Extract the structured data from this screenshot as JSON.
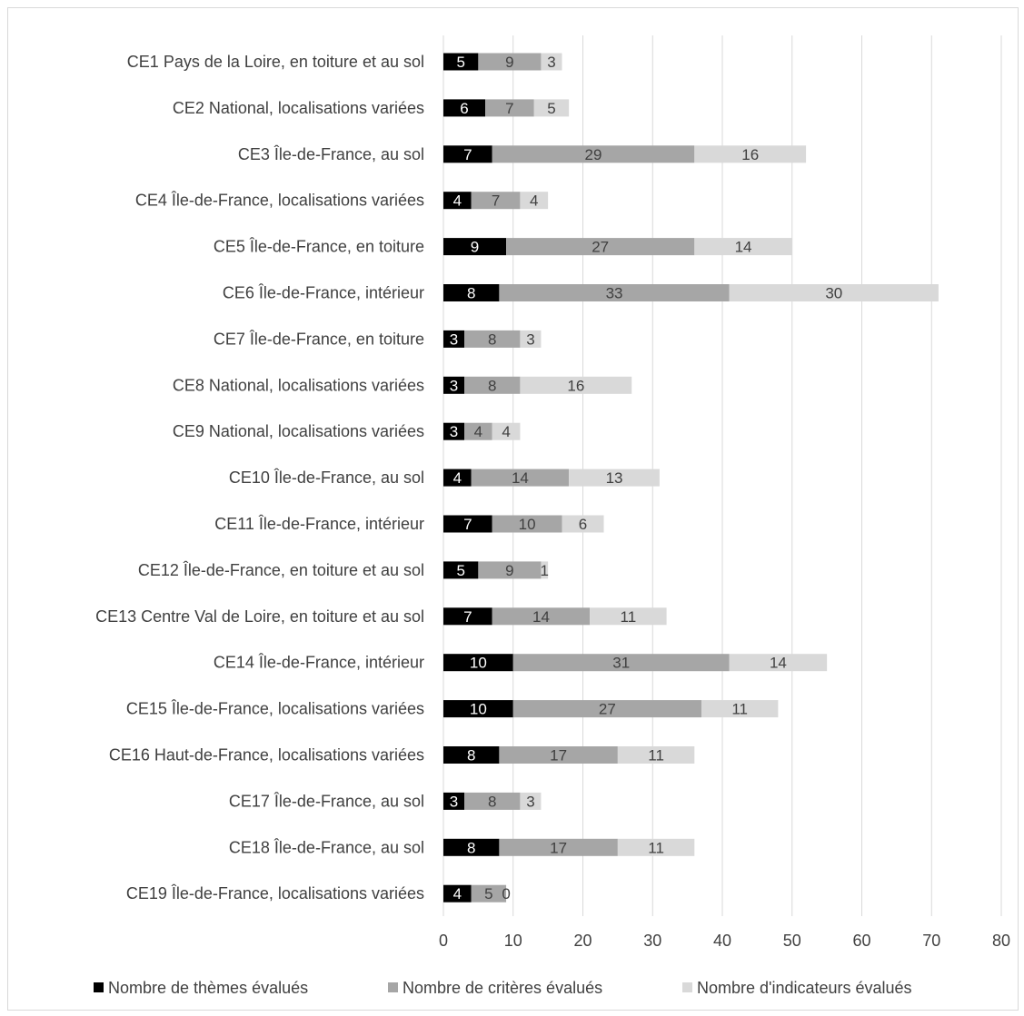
{
  "chart_data": {
    "type": "bar",
    "orientation": "horizontal",
    "stacked": true,
    "categories": [
      "CE1 Pays de la Loire, en toiture et au sol",
      "CE2 National, localisations variées",
      "CE3 Île-de-France, au sol",
      "CE4 Île-de-France, localisations variées",
      "CE5 Île-de-France, en toiture",
      "CE6 Île-de-France, intérieur",
      "CE7 Île-de-France, en toiture",
      "CE8 National, localisations variées",
      "CE9 National, localisations variées",
      "CE10 Île-de-France, au sol",
      "CE11 Île-de-France, intérieur",
      "CE12 Île-de-France, en toiture et au sol",
      "CE13 Centre Val de Loire, en toiture et au sol",
      "CE14 Île-de-France, intérieur",
      "CE15 Île-de-France, localisations variées",
      "CE16 Haut-de-France, localisations variées",
      "CE17 Île-de-France, au sol",
      "CE18 Île-de-France, au sol",
      "CE19 Île-de-France, localisations variées"
    ],
    "series": [
      {
        "name": "Nombre de thèmes évalués",
        "color": "#000000",
        "label_color": "#ffffff",
        "values": [
          5,
          6,
          7,
          4,
          9,
          8,
          3,
          3,
          3,
          4,
          7,
          5,
          7,
          10,
          10,
          8,
          3,
          8,
          4
        ]
      },
      {
        "name": "Nombre de critères évalués",
        "color": "#a6a6a6",
        "label_color": "#404040",
        "values": [
          9,
          7,
          29,
          7,
          27,
          33,
          8,
          8,
          4,
          14,
          10,
          9,
          14,
          31,
          27,
          17,
          8,
          17,
          5
        ]
      },
      {
        "name": "Nombre d'indicateurs évalués",
        "color": "#d9d9d9",
        "label_color": "#404040",
        "values": [
          3,
          5,
          16,
          4,
          14,
          30,
          3,
          16,
          4,
          13,
          6,
          1,
          11,
          14,
          11,
          11,
          3,
          11,
          0
        ]
      }
    ],
    "xlim": [
      0,
      80
    ],
    "xticks": [
      "0",
      "10",
      "20",
      "30",
      "40",
      "50",
      "60",
      "70",
      "80"
    ],
    "grid": "vertical",
    "legend_position": "bottom",
    "title": "",
    "xlabel": "",
    "ylabel": ""
  }
}
